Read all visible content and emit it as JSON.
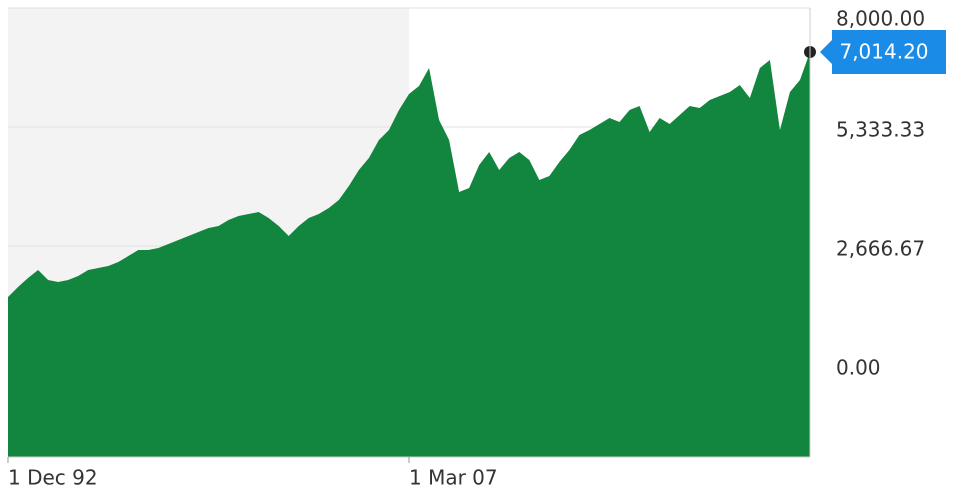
{
  "chart_data": {
    "type": "area",
    "values": [
      1524,
      1748,
      1950,
      2129,
      1905,
      1860,
      1905,
      1994,
      2129,
      2174,
      2219,
      2308,
      2443,
      2577,
      2577,
      2622,
      2712,
      2801,
      2891,
      2981,
      3070,
      3115,
      3249,
      3339,
      3384,
      3429,
      3294,
      3115,
      2891,
      3115,
      3294,
      3384,
      3518,
      3698,
      4011,
      4370,
      4639,
      5042,
      5266,
      5715,
      6073,
      6252,
      6656,
      5490,
      5042,
      3877,
      3967,
      4482,
      4773,
      4370,
      4639,
      4773,
      4594,
      4146,
      4235,
      4549,
      4818,
      5154,
      5266,
      5401,
      5535,
      5446,
      5715,
      5804,
      5222,
      5535,
      5401,
      5603,
      5804,
      5759,
      5939,
      6028,
      6118,
      6275,
      5983,
      6656,
      6835,
      5266,
      6118,
      6387,
      7014.2
    ],
    "value_labels": [
      null,
      null,
      null,
      null,
      null,
      null,
      null,
      null,
      null,
      null,
      null,
      null,
      null,
      null,
      null,
      null,
      null,
      null,
      null,
      null,
      null,
      null,
      null,
      null,
      null,
      null,
      null,
      null,
      null,
      null,
      null,
      null,
      null,
      null,
      null,
      null,
      null,
      null,
      null,
      null,
      null,
      null,
      null,
      null,
      null,
      null,
      null,
      null,
      null,
      null,
      null,
      null,
      null,
      null,
      null,
      null,
      null,
      null,
      null,
      null,
      null,
      null,
      null,
      null,
      null,
      null,
      null,
      null,
      null,
      null,
      null,
      null,
      null,
      null,
      null,
      null,
      null,
      null,
      null,
      null,
      "7,014.20"
    ],
    "color": "#12853e",
    "xlim": [
      0,
      80
    ],
    "xticks": [
      {
        "value": 0,
        "label": "1 Dec 92"
      },
      {
        "value": 40,
        "label": "1 Mar 07"
      }
    ],
    "ylim": [
      -2060,
      8000
    ],
    "yticks": [
      {
        "value": 8000,
        "label": "8,000.00"
      },
      {
        "value": 5333.33,
        "label": "5,333.33"
      },
      {
        "value": 2666.67,
        "label": "2,666.67"
      },
      {
        "value": 0,
        "label": "0.00"
      }
    ],
    "shaded_range": [
      0,
      40
    ],
    "grid": true
  }
}
